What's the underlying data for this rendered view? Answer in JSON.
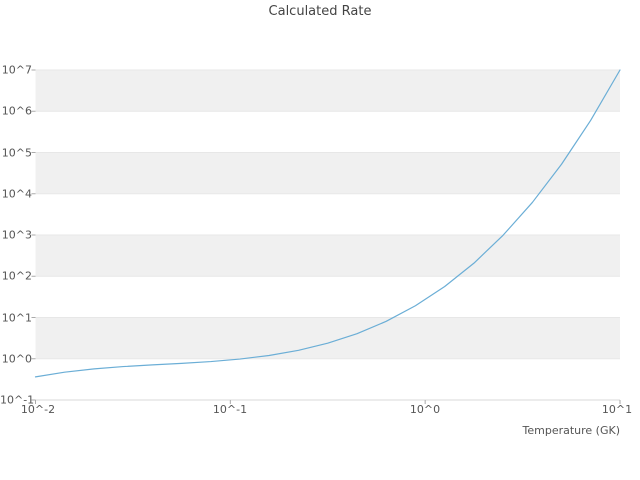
{
  "title": "Calculated Rate",
  "chart_data": {
    "type": "line",
    "title": "Calculated Rate",
    "xlabel": "Temperature (GK)",
    "ylabel": "",
    "x_scale": "log",
    "y_scale": "log",
    "xlim": [
      0.01,
      10
    ],
    "ylim": [
      0.1,
      10000000
    ],
    "grid": true,
    "legend": "none",
    "series_name": "Calculated Rate",
    "line_color": "#6baed6",
    "band_color": "#f0f0f0",
    "grid_color": "#e7e7e7",
    "tick_color": "#aaaaaa",
    "x": [
      0.01,
      0.0141,
      0.02,
      0.0282,
      0.0398,
      0.0562,
      0.0794,
      0.112,
      0.158,
      0.224,
      0.316,
      0.447,
      0.631,
      0.891,
      1.26,
      1.78,
      2.51,
      3.55,
      5.01,
      7.08,
      10
    ],
    "y": [
      0.363,
      0.473,
      0.569,
      0.646,
      0.71,
      0.774,
      0.855,
      0.983,
      1.2,
      1.6,
      2.38,
      4.06,
      8.07,
      19.3,
      56.4,
      208,
      985,
      6160,
      51900,
      606000,
      10000000
    ],
    "x_tick_labels": [
      "10^-2",
      "10^-1",
      "10^0",
      "10^1"
    ],
    "y_tick_labels": [
      "10^7",
      "10^6",
      "10^5",
      "10^4",
      "10^3",
      "10^2",
      "10^1",
      "10^0",
      "10^-1"
    ]
  }
}
